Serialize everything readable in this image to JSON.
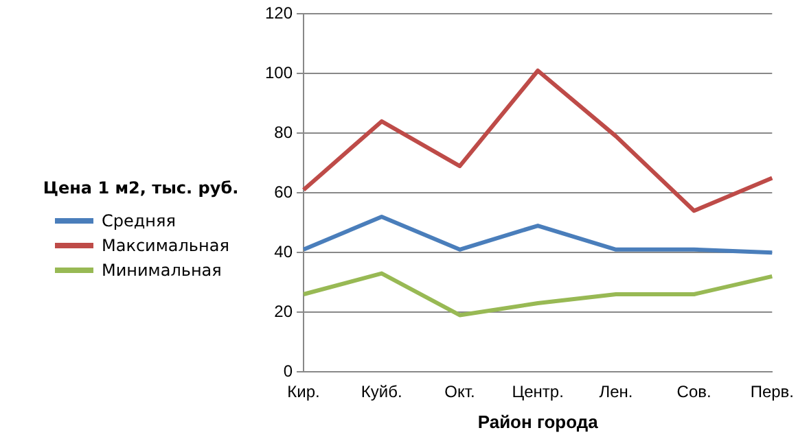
{
  "chart_data": {
    "type": "line",
    "xlabel": "Район города",
    "ylabel": "Цена 1 м2, тыс. руб.",
    "categories": [
      "Кир.",
      "Куйб.",
      "Окт.",
      "Центр.",
      "Лен.",
      "Сов.",
      "Перв."
    ],
    "series": [
      {
        "name": "Средняя",
        "color": "#4a7ebb",
        "values": [
          41,
          52,
          41,
          49,
          41,
          41,
          40
        ]
      },
      {
        "name": "Максимальная",
        "color": "#be4b48",
        "values": [
          61,
          84,
          69,
          101,
          79,
          54,
          65
        ]
      },
      {
        "name": "Минимальная",
        "color": "#98b954",
        "values": [
          26,
          33,
          19,
          23,
          26,
          26,
          32
        ]
      }
    ],
    "ylim": [
      0,
      120
    ],
    "yticks": [
      0,
      20,
      40,
      60,
      80,
      100,
      120
    ],
    "grid": "y",
    "legend": "left",
    "marker": "none",
    "line_style": "solid"
  }
}
